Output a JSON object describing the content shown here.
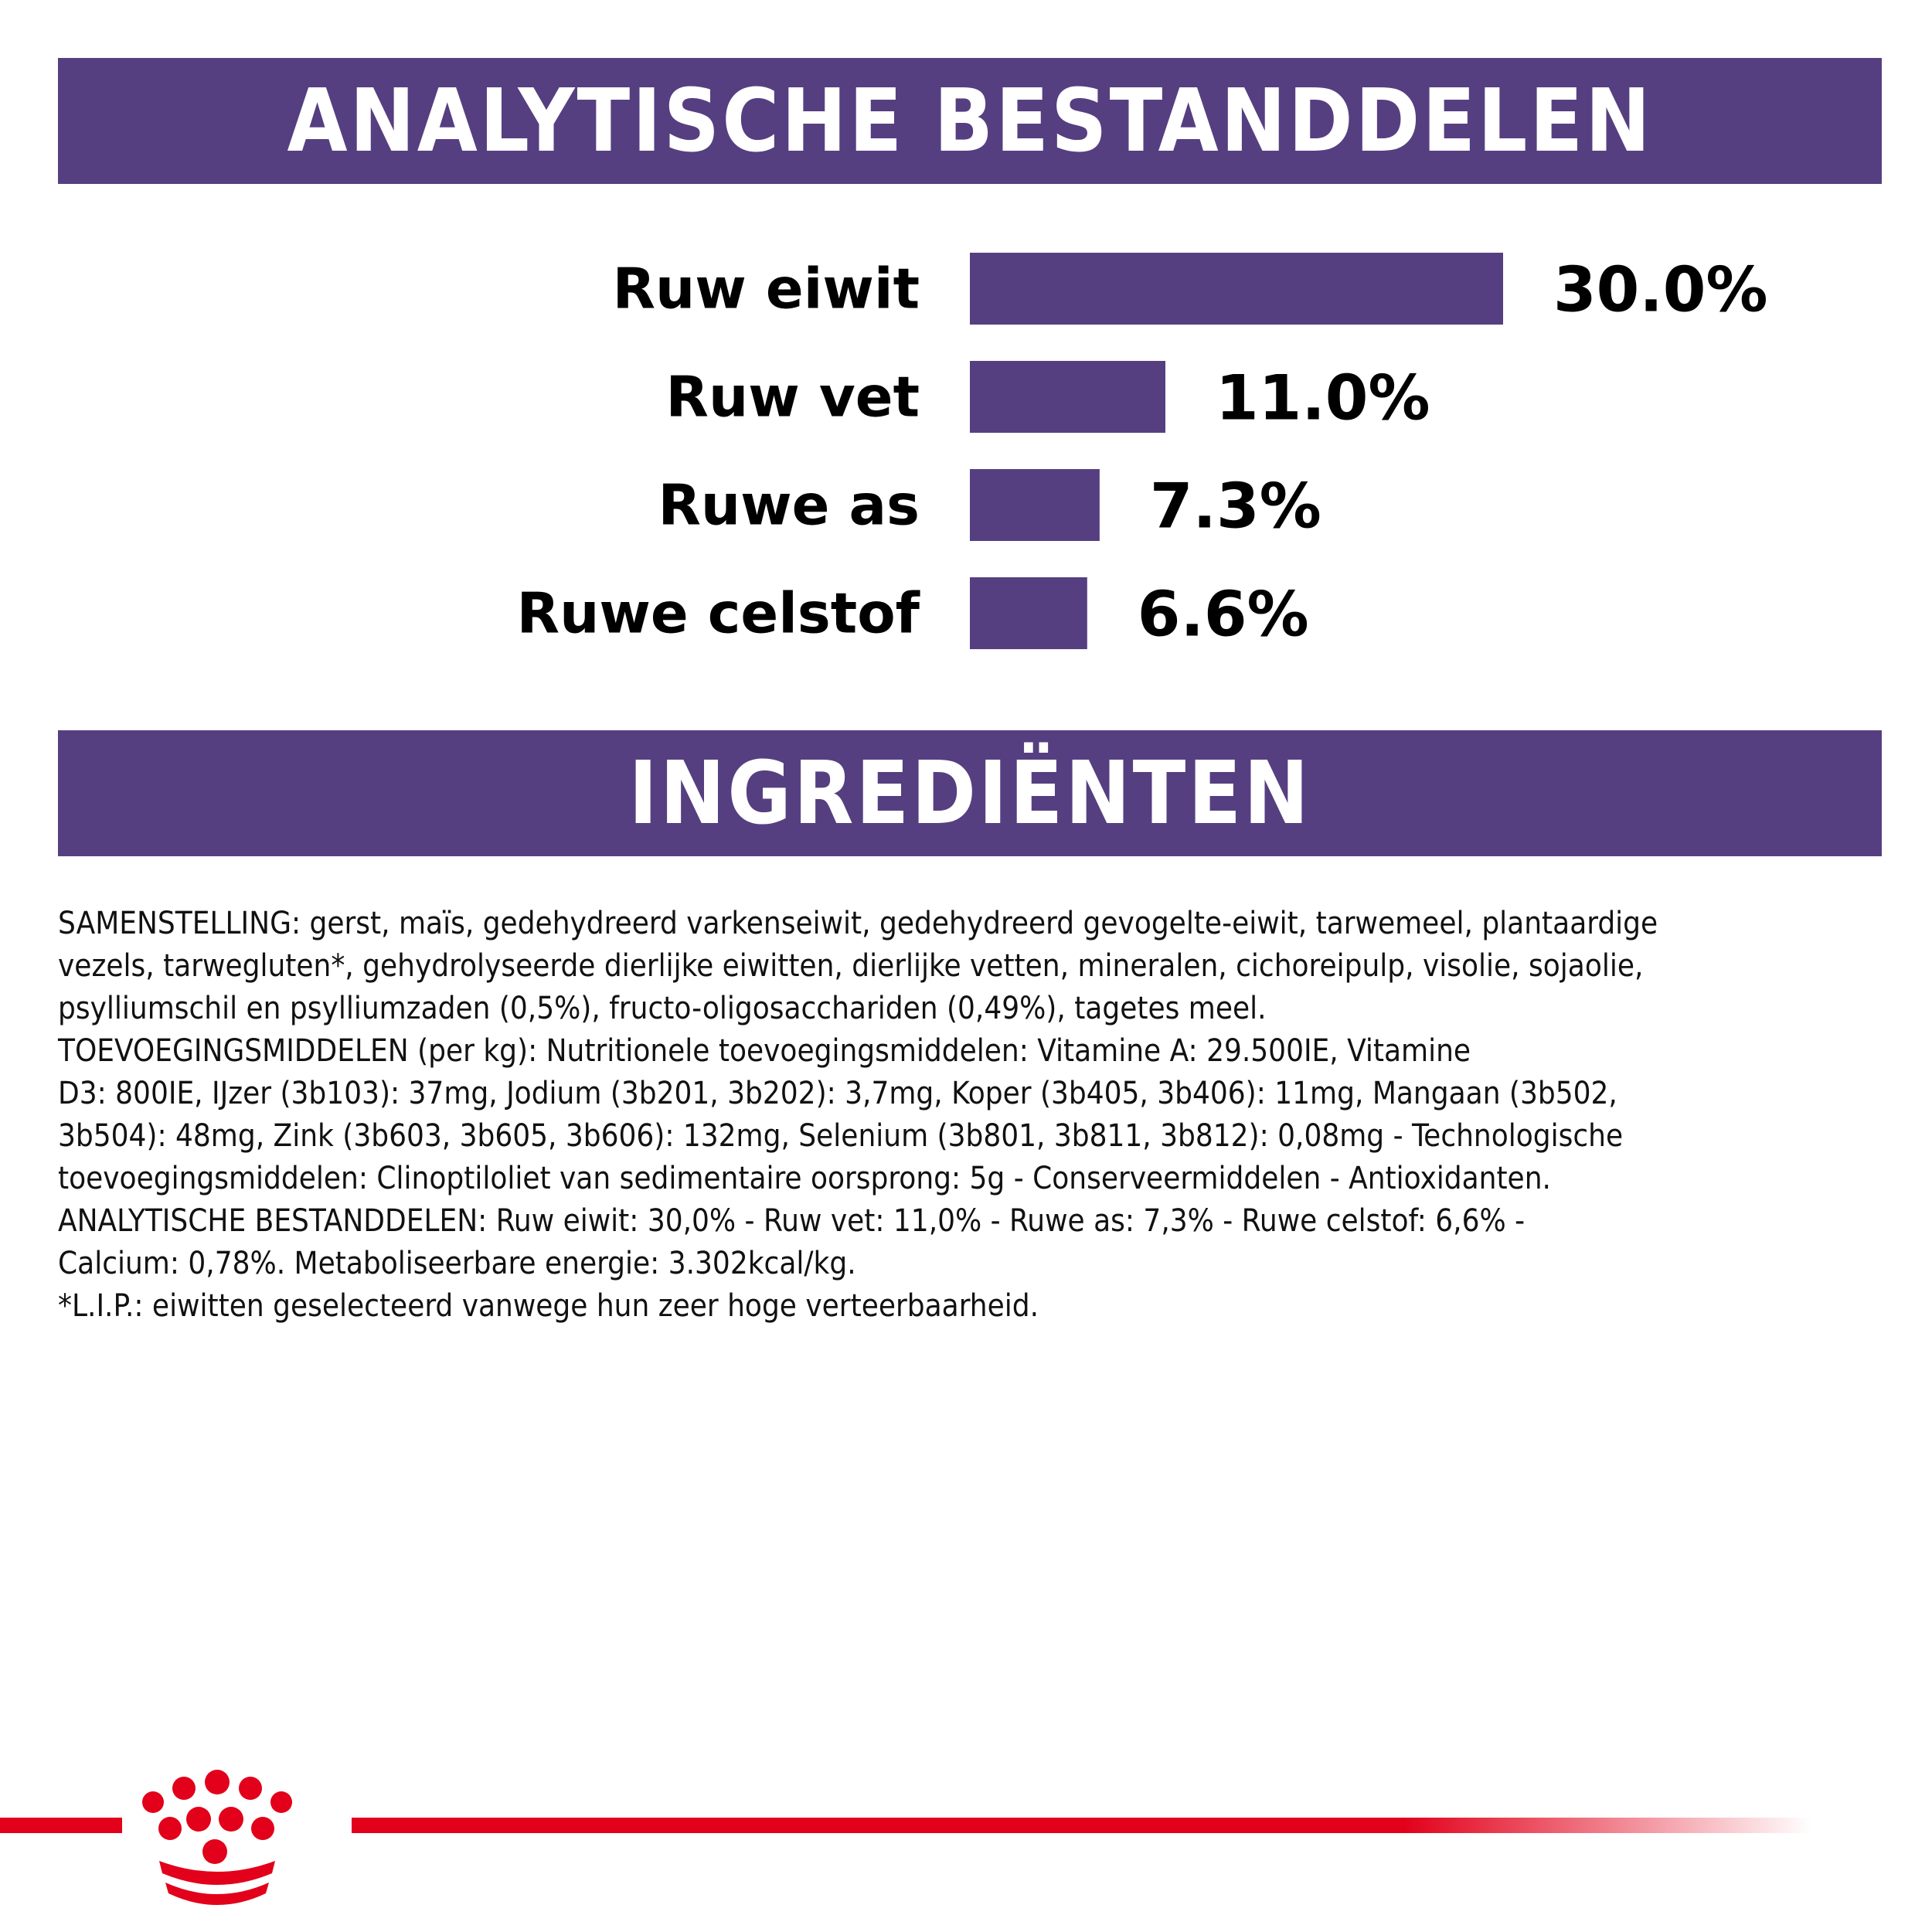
{
  "colors": {
    "accent": "#553f80",
    "brand_red": "#e2001a"
  },
  "headers": {
    "analytics": "ANALYTISCHE BESTANDDELEN",
    "ingredients": "INGREDIËNTEN"
  },
  "chart_data": {
    "type": "bar",
    "orientation": "horizontal",
    "categories": [
      "Ruw eiwit",
      "Ruw vet",
      "Ruwe as",
      "Ruwe celstof"
    ],
    "values": [
      30.0,
      11.0,
      7.3,
      6.6
    ],
    "value_labels": [
      "30.0%",
      "11.0%",
      "7.3%",
      "6.6%"
    ],
    "title": "ANALYTISCHE BESTANDDELEN",
    "xlabel": "",
    "ylabel": "",
    "grid": false,
    "legend": "none",
    "bar_color": "#553f80"
  },
  "ingredients_lines": [
    "SAMENSTELLING: gerst, maïs, gedehydreerd varkenseiwit, gedehydreerd gevogelte-eiwit, tarwemeel, plantaardige",
    "vezels, tarwegluten*, gehydrolyseerde dierlijke eiwitten, dierlijke vetten, mineralen, cichoreipulp, visolie, sojaolie,",
    "psylliumschil en psylliumzaden (0,5%), fructo-oligosacchariden (0,49%), tagetes meel.",
    "TOEVOEGINGSMIDDELEN (per kg): Nutritionele toevoegingsmiddelen: Vitamine A: 29.500IE, Vitamine",
    "D3: 800IE, IJzer (3b103): 37mg, Jodium (3b201, 3b202): 3,7mg, Koper (3b405, 3b406): 11mg, Mangaan (3b502,",
    "3b504): 48mg, Zink (3b603, 3b605, 3b606): 132mg, Selenium (3b801, 3b811, 3b812): 0,08mg - Technologische",
    "toevoegingsmiddelen: Clinoptiloliet van sedimentaire oorsprong: 5g - Conserveermiddelen - Antioxidanten.",
    "ANALYTISCHE BESTANDDELEN: Ruw eiwit: 30,0% - Ruw vet: 11,0% - Ruwe as: 7,3% - Ruwe celstof: 6,6% -",
    "Calcium: 0,78%. Metaboliseerbare energie: 3.302kcal/kg.",
    "*L.I.P.: eiwitten geselecteerd vanwege hun zeer hoge verteerbaarheid."
  ],
  "logo": {
    "icon": "crown-icon"
  }
}
